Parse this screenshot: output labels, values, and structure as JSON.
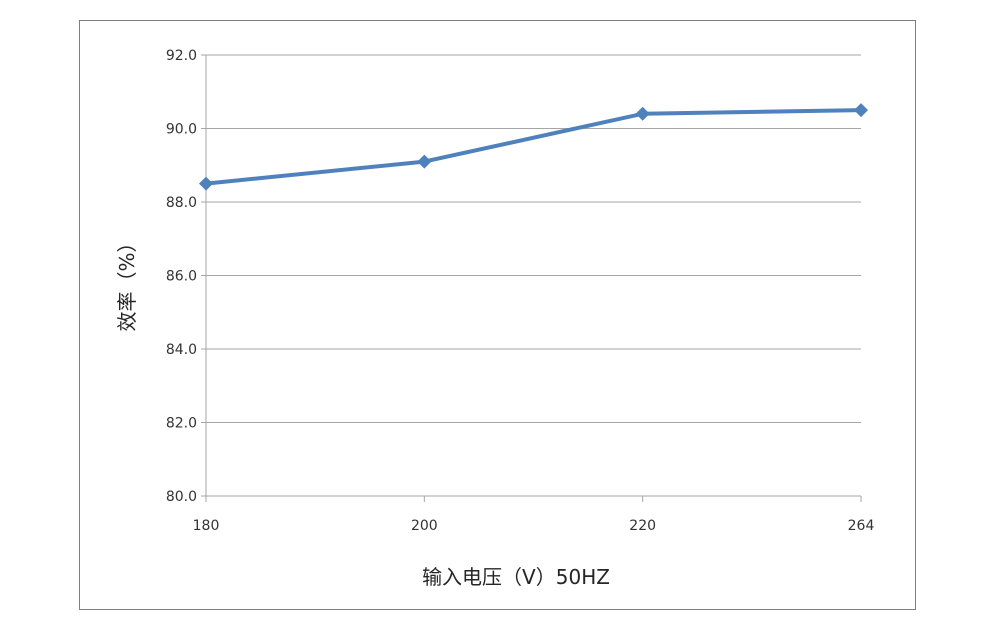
{
  "chart_data": {
    "type": "line",
    "categories": [
      "180",
      "200",
      "220",
      "264"
    ],
    "series": [
      {
        "values": [
          88.5,
          89.1,
          90.4,
          90.5
        ],
        "color": "#4f81bd",
        "marker": "diamond"
      }
    ],
    "title": "",
    "xlabel": "输入电压（V）50HZ",
    "ylabel": "效率（%）",
    "ylim": [
      80.0,
      92.0
    ],
    "yticks": [
      "80.0",
      "82.0",
      "84.0",
      "86.0",
      "88.0",
      "90.0",
      "92.0"
    ],
    "grid": true,
    "legend": "none",
    "colors": {
      "gridline": "#a6a6a6",
      "axis": "#a6a6a6",
      "frame": "#7f7f7f"
    }
  }
}
